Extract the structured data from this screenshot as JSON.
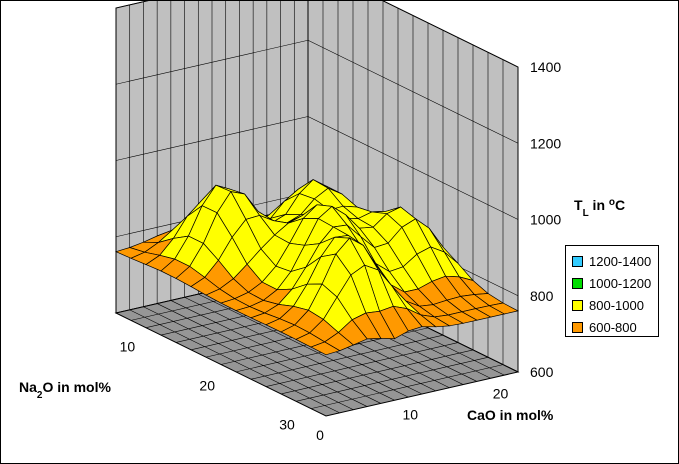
{
  "chart_data": {
    "type": "surface",
    "x_axis": {
      "label_prefix": "CaO in mol",
      "label_suffix": "%",
      "ticks": [
        "0",
        "10",
        "20"
      ]
    },
    "y_axis": {
      "label_prefix": "Na",
      "label_sub": "2",
      "label_suffix": "O in mol%",
      "ticks": [
        "10",
        "20",
        "30"
      ]
    },
    "z_axis": {
      "label_prefix": "T",
      "label_sub": "L",
      "label_mid": " in ",
      "label_sup": "o",
      "label_suffix": "C",
      "ticks": [
        "600",
        "800",
        "1000",
        "1200",
        "1400"
      ],
      "range": [
        600,
        1400
      ]
    },
    "legend": [
      {
        "label": "1200-1400",
        "color": "#33ccff"
      },
      {
        "label": "1000-1200",
        "color": "#00dd00"
      },
      {
        "label": "800-1000",
        "color": "#ffff00"
      },
      {
        "label": "600-800",
        "color": "#ff9900"
      }
    ],
    "grid": true,
    "legend_position": "right"
  }
}
